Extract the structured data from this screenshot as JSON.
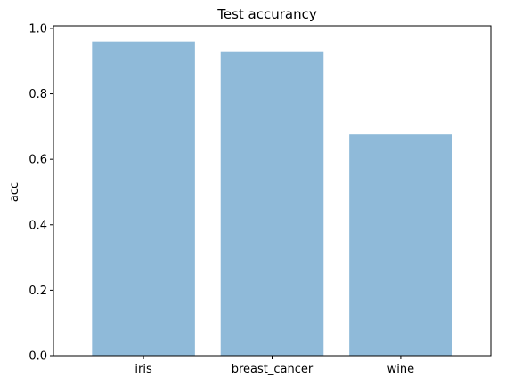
{
  "chart_data": {
    "type": "bar",
    "title": "Test accurancy",
    "xlabel": "",
    "ylabel": "acc",
    "categories": [
      "iris",
      "breast_cancer",
      "wine"
    ],
    "values": [
      0.96,
      0.93,
      0.676
    ],
    "ylim": [
      0,
      1.008
    ],
    "yticks": [
      "0.0",
      "0.2",
      "0.4",
      "0.6",
      "0.8",
      "1.0"
    ],
    "grid": false,
    "bar_color": "#8fbad9"
  }
}
